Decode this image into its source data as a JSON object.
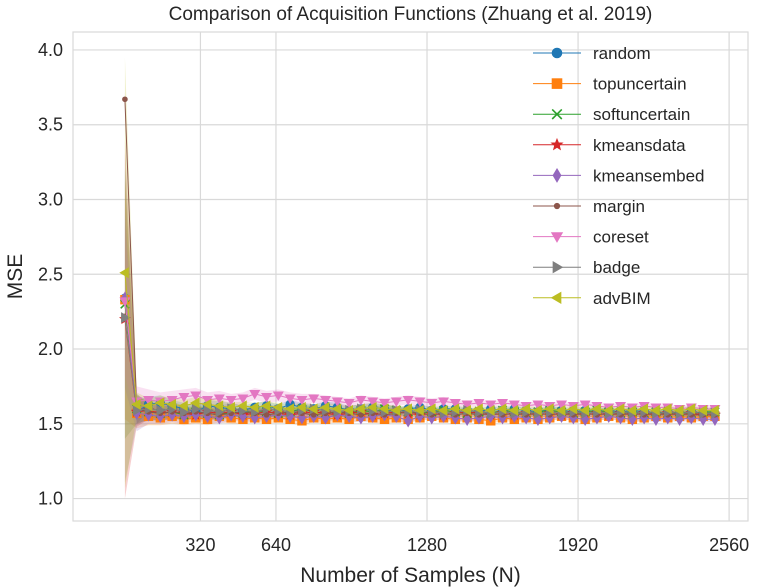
{
  "chart_data": {
    "type": "line",
    "title": "Comparison of Acquisition Functions (Zhuang et al. 2019)",
    "xlabel": "Number of Samples (N)",
    "ylabel": "MSE",
    "xlim": [
      -220,
      2640
    ],
    "ylim": [
      0.85,
      4.12
    ],
    "xticks": [
      320,
      640,
      1280,
      1920,
      2560
    ],
    "xtick_labels": [
      "320",
      "640",
      "1280",
      "1920",
      "2560"
    ],
    "yticks": [
      1.0,
      1.5,
      2.0,
      2.5,
      3.0,
      3.5,
      4.0
    ],
    "ytick_labels": [
      "1.0",
      "1.5",
      "2.0",
      "2.5",
      "3.0",
      "3.5",
      "4.0"
    ],
    "grid": true,
    "legend_position": "upper right",
    "x": [
      0,
      50,
      100,
      150,
      200,
      250,
      300,
      350,
      400,
      450,
      500,
      550,
      600,
      650,
      700,
      750,
      800,
      850,
      900,
      950,
      1000,
      1050,
      1100,
      1150,
      1200,
      1250,
      1300,
      1350,
      1400,
      1450,
      1500,
      1550,
      1600,
      1650,
      1700,
      1750,
      1800,
      1850,
      1900,
      1950,
      2000,
      2050,
      2100,
      2150,
      2200,
      2250,
      2300,
      2350,
      2400,
      2450,
      2500
    ],
    "series": [
      {
        "name": "random",
        "color": "#1f77b4",
        "marker": "circle",
        "values": [
          2.34,
          1.58,
          1.63,
          1.64,
          1.62,
          1.6,
          1.58,
          1.62,
          1.61,
          1.6,
          1.59,
          1.61,
          1.62,
          1.6,
          1.63,
          1.61,
          1.6,
          1.62,
          1.61,
          1.59,
          1.6,
          1.61,
          1.6,
          1.58,
          1.6,
          1.61,
          1.59,
          1.6,
          1.6,
          1.59,
          1.58,
          1.6,
          1.59,
          1.6,
          1.59,
          1.58,
          1.6,
          1.59,
          1.58,
          1.59,
          1.58,
          1.59,
          1.58,
          1.59,
          1.58,
          1.57,
          1.58,
          1.57,
          1.58,
          1.57,
          1.57
        ],
        "band": [
          0.05,
          0.08,
          0.05,
          0.05,
          0.04,
          0.04,
          0.04,
          0.04,
          0.04,
          0.04,
          0.03,
          0.03,
          0.03,
          0.03,
          0.03,
          0.03,
          0.03,
          0.03,
          0.03,
          0.03,
          0.03,
          0.03,
          0.03,
          0.03,
          0.02,
          0.02,
          0.02,
          0.02,
          0.02,
          0.02,
          0.02,
          0.02,
          0.02,
          0.02,
          0.02,
          0.02,
          0.02,
          0.02,
          0.02,
          0.02,
          0.02,
          0.02,
          0.02,
          0.02,
          0.02,
          0.02,
          0.02,
          0.02,
          0.02,
          0.02,
          0.02
        ]
      },
      {
        "name": "topuncertain",
        "color": "#ff7f0e",
        "marker": "square",
        "values": [
          2.33,
          1.57,
          1.55,
          1.54,
          1.55,
          1.53,
          1.54,
          1.53,
          1.55,
          1.54,
          1.53,
          1.54,
          1.53,
          1.54,
          1.53,
          1.52,
          1.54,
          1.53,
          1.54,
          1.53,
          1.55,
          1.54,
          1.53,
          1.54,
          1.53,
          1.54,
          1.55,
          1.54,
          1.53,
          1.54,
          1.53,
          1.52,
          1.54,
          1.53,
          1.54,
          1.53,
          1.54,
          1.55,
          1.54,
          1.53,
          1.54,
          1.55,
          1.54,
          1.53,
          1.54,
          1.55,
          1.54,
          1.55,
          1.54,
          1.55,
          1.55
        ],
        "band": [
          0.8,
          0.1,
          0.06,
          0.05,
          0.05,
          0.04,
          0.04,
          0.04,
          0.04,
          0.04,
          0.03,
          0.03,
          0.03,
          0.03,
          0.03,
          0.03,
          0.03,
          0.03,
          0.03,
          0.03,
          0.03,
          0.03,
          0.03,
          0.03,
          0.02,
          0.02,
          0.02,
          0.02,
          0.02,
          0.02,
          0.02,
          0.02,
          0.02,
          0.02,
          0.02,
          0.02,
          0.02,
          0.02,
          0.02,
          0.02,
          0.02,
          0.02,
          0.02,
          0.02,
          0.02,
          0.02,
          0.02,
          0.02,
          0.02,
          0.02,
          0.02
        ]
      },
      {
        "name": "softuncertain",
        "color": "#2ca02c",
        "marker": "x",
        "values": [
          2.3,
          1.6,
          1.58,
          1.57,
          1.58,
          1.56,
          1.58,
          1.57,
          1.56,
          1.58,
          1.57,
          1.59,
          1.58,
          1.57,
          1.58,
          1.6,
          1.58,
          1.57,
          1.58,
          1.57,
          1.59,
          1.58,
          1.6,
          1.59,
          1.58,
          1.57,
          1.58,
          1.59,
          1.58,
          1.57,
          1.58,
          1.57,
          1.59,
          1.58,
          1.57,
          1.58,
          1.59,
          1.58,
          1.57,
          1.58,
          1.59,
          1.58,
          1.57,
          1.58,
          1.57,
          1.58,
          1.57,
          1.58,
          1.57,
          1.58,
          1.58
        ],
        "band": [
          0.9,
          0.1,
          0.05,
          0.05,
          0.04,
          0.04,
          0.04,
          0.04,
          0.03,
          0.03,
          0.03,
          0.03,
          0.03,
          0.03,
          0.03,
          0.03,
          0.03,
          0.03,
          0.03,
          0.03,
          0.03,
          0.03,
          0.03,
          0.03,
          0.02,
          0.02,
          0.02,
          0.02,
          0.02,
          0.02,
          0.02,
          0.02,
          0.02,
          0.02,
          0.02,
          0.02,
          0.02,
          0.02,
          0.02,
          0.02,
          0.02,
          0.02,
          0.02,
          0.02,
          0.02,
          0.02,
          0.02,
          0.02,
          0.02,
          0.02,
          0.02
        ]
      },
      {
        "name": "kmeansdata",
        "color": "#d62728",
        "marker": "star",
        "values": [
          2.2,
          1.58,
          1.59,
          1.57,
          1.58,
          1.57,
          1.56,
          1.58,
          1.57,
          1.58,
          1.56,
          1.57,
          1.58,
          1.57,
          1.56,
          1.57,
          1.58,
          1.57,
          1.56,
          1.57,
          1.58,
          1.56,
          1.57,
          1.58,
          1.57,
          1.56,
          1.57,
          1.56,
          1.57,
          1.58,
          1.57,
          1.56,
          1.57,
          1.56,
          1.57,
          1.56,
          1.57,
          1.56,
          1.57,
          1.56,
          1.57,
          1.56,
          1.57,
          1.56,
          1.57,
          1.56,
          1.57,
          1.56,
          1.57,
          1.56,
          1.56
        ],
        "band": [
          1.2,
          0.1,
          0.06,
          0.05,
          0.05,
          0.04,
          0.04,
          0.04,
          0.04,
          0.03,
          0.03,
          0.03,
          0.03,
          0.03,
          0.03,
          0.03,
          0.03,
          0.03,
          0.03,
          0.03,
          0.03,
          0.03,
          0.03,
          0.03,
          0.02,
          0.02,
          0.02,
          0.02,
          0.02,
          0.02,
          0.02,
          0.02,
          0.02,
          0.02,
          0.02,
          0.02,
          0.02,
          0.02,
          0.02,
          0.02,
          0.02,
          0.02,
          0.02,
          0.02,
          0.02,
          0.02,
          0.02,
          0.02,
          0.02,
          0.02,
          0.02
        ]
      },
      {
        "name": "kmeansembed",
        "color": "#9467bd",
        "marker": "diamond",
        "values": [
          2.34,
          1.57,
          1.56,
          1.55,
          1.56,
          1.55,
          1.56,
          1.55,
          1.54,
          1.56,
          1.55,
          1.54,
          1.55,
          1.56,
          1.55,
          1.54,
          1.55,
          1.54,
          1.56,
          1.55,
          1.54,
          1.55,
          1.56,
          1.55,
          1.52,
          1.55,
          1.54,
          1.55,
          1.54,
          1.53,
          1.54,
          1.55,
          1.54,
          1.55,
          1.54,
          1.53,
          1.54,
          1.55,
          1.54,
          1.53,
          1.54,
          1.55,
          1.54,
          1.53,
          1.54,
          1.53,
          1.54,
          1.53,
          1.54,
          1.53,
          1.53
        ],
        "band": [
          0.6,
          0.12,
          0.06,
          0.05,
          0.05,
          0.05,
          0.04,
          0.04,
          0.04,
          0.04,
          0.03,
          0.03,
          0.03,
          0.03,
          0.03,
          0.03,
          0.03,
          0.03,
          0.03,
          0.03,
          0.03,
          0.03,
          0.03,
          0.03,
          0.02,
          0.02,
          0.02,
          0.02,
          0.02,
          0.02,
          0.02,
          0.02,
          0.02,
          0.02,
          0.02,
          0.02,
          0.02,
          0.02,
          0.02,
          0.02,
          0.02,
          0.02,
          0.02,
          0.02,
          0.02,
          0.02,
          0.02,
          0.02,
          0.02,
          0.02,
          0.02
        ]
      },
      {
        "name": "margin",
        "color": "#8c564b",
        "marker": "dot",
        "values": [
          3.67,
          1.6,
          1.58,
          1.57,
          1.58,
          1.57,
          1.58,
          1.57,
          1.56,
          1.57,
          1.58,
          1.57,
          1.56,
          1.57,
          1.58,
          1.57,
          1.56,
          1.57,
          1.58,
          1.57,
          1.56,
          1.57,
          1.56,
          1.57,
          1.58,
          1.57,
          1.56,
          1.57,
          1.56,
          1.57,
          1.56,
          1.57,
          1.56,
          1.57,
          1.56,
          1.57,
          1.56,
          1.57,
          1.56,
          1.57,
          1.56,
          1.57,
          1.56,
          1.57,
          1.56,
          1.57,
          1.56,
          1.57,
          1.56,
          1.56,
          1.56
        ],
        "band": [
          0.05,
          0.1,
          0.06,
          0.05,
          0.05,
          0.04,
          0.04,
          0.04,
          0.04,
          0.03,
          0.03,
          0.03,
          0.03,
          0.03,
          0.03,
          0.03,
          0.03,
          0.03,
          0.03,
          0.03,
          0.03,
          0.03,
          0.03,
          0.03,
          0.02,
          0.02,
          0.02,
          0.02,
          0.02,
          0.02,
          0.02,
          0.02,
          0.02,
          0.02,
          0.02,
          0.02,
          0.02,
          0.02,
          0.02,
          0.02,
          0.02,
          0.02,
          0.02,
          0.02,
          0.02,
          0.02,
          0.02,
          0.02,
          0.02,
          0.02,
          0.02
        ]
      },
      {
        "name": "coreset",
        "color": "#e377c2",
        "marker": "triangle-down",
        "values": [
          2.32,
          1.65,
          1.66,
          1.65,
          1.66,
          1.68,
          1.69,
          1.66,
          1.67,
          1.66,
          1.67,
          1.7,
          1.68,
          1.69,
          1.67,
          1.66,
          1.67,
          1.66,
          1.65,
          1.64,
          1.66,
          1.65,
          1.64,
          1.65,
          1.66,
          1.65,
          1.64,
          1.65,
          1.64,
          1.63,
          1.64,
          1.63,
          1.64,
          1.63,
          1.62,
          1.63,
          1.62,
          1.63,
          1.62,
          1.63,
          1.62,
          1.61,
          1.62,
          1.61,
          1.62,
          1.61,
          1.61,
          1.6,
          1.61,
          1.6,
          1.6
        ],
        "band": [
          0.5,
          0.1,
          0.07,
          0.06,
          0.06,
          0.05,
          0.05,
          0.05,
          0.05,
          0.04,
          0.04,
          0.04,
          0.04,
          0.04,
          0.04,
          0.04,
          0.03,
          0.03,
          0.03,
          0.03,
          0.03,
          0.03,
          0.03,
          0.03,
          0.03,
          0.03,
          0.03,
          0.03,
          0.02,
          0.02,
          0.02,
          0.02,
          0.02,
          0.02,
          0.02,
          0.02,
          0.02,
          0.02,
          0.02,
          0.02,
          0.02,
          0.02,
          0.02,
          0.02,
          0.02,
          0.02,
          0.02,
          0.02,
          0.02,
          0.02,
          0.02
        ]
      },
      {
        "name": "badge",
        "color": "#7f7f7f",
        "marker": "triangle-right",
        "values": [
          2.21,
          1.59,
          1.6,
          1.59,
          1.6,
          1.58,
          1.6,
          1.59,
          1.58,
          1.6,
          1.59,
          1.58,
          1.6,
          1.59,
          1.58,
          1.59,
          1.6,
          1.59,
          1.58,
          1.59,
          1.6,
          1.59,
          1.58,
          1.59,
          1.58,
          1.59,
          1.58,
          1.57,
          1.58,
          1.59,
          1.58,
          1.57,
          1.58,
          1.57,
          1.58,
          1.57,
          1.58,
          1.57,
          1.58,
          1.57,
          1.58,
          1.57,
          1.58,
          1.57,
          1.58,
          1.57,
          1.58,
          1.57,
          1.58,
          1.57,
          1.57
        ],
        "band": [
          1.1,
          0.1,
          0.06,
          0.05,
          0.05,
          0.04,
          0.04,
          0.04,
          0.04,
          0.04,
          0.03,
          0.03,
          0.03,
          0.03,
          0.03,
          0.03,
          0.03,
          0.03,
          0.03,
          0.03,
          0.03,
          0.03,
          0.03,
          0.03,
          0.02,
          0.02,
          0.02,
          0.02,
          0.02,
          0.02,
          0.02,
          0.02,
          0.02,
          0.02,
          0.02,
          0.02,
          0.02,
          0.02,
          0.02,
          0.02,
          0.02,
          0.02,
          0.02,
          0.02,
          0.02,
          0.02,
          0.02,
          0.02,
          0.02,
          0.02,
          0.02
        ]
      },
      {
        "name": "advBIM",
        "color": "#bcbd22",
        "marker": "triangle-left",
        "values": [
          2.51,
          1.63,
          1.62,
          1.64,
          1.63,
          1.62,
          1.64,
          1.63,
          1.62,
          1.61,
          1.62,
          1.61,
          1.62,
          1.61,
          1.6,
          1.61,
          1.6,
          1.61,
          1.6,
          1.59,
          1.6,
          1.61,
          1.6,
          1.59,
          1.6,
          1.59,
          1.6,
          1.59,
          1.6,
          1.59,
          1.6,
          1.59,
          1.6,
          1.59,
          1.6,
          1.59,
          1.6,
          1.59,
          1.6,
          1.59,
          1.6,
          1.59,
          1.6,
          1.59,
          1.6,
          1.59,
          1.6,
          1.59,
          1.6,
          1.59,
          1.59
        ],
        "band": [
          1.44,
          0.08,
          0.05,
          0.05,
          0.04,
          0.04,
          0.04,
          0.04,
          0.04,
          0.03,
          0.03,
          0.03,
          0.03,
          0.03,
          0.03,
          0.03,
          0.03,
          0.03,
          0.03,
          0.03,
          0.03,
          0.03,
          0.03,
          0.03,
          0.02,
          0.02,
          0.02,
          0.02,
          0.02,
          0.02,
          0.02,
          0.02,
          0.02,
          0.02,
          0.02,
          0.02,
          0.02,
          0.02,
          0.02,
          0.02,
          0.02,
          0.02,
          0.02,
          0.02,
          0.02,
          0.02,
          0.02,
          0.02,
          0.02,
          0.02,
          0.02
        ]
      }
    ]
  }
}
